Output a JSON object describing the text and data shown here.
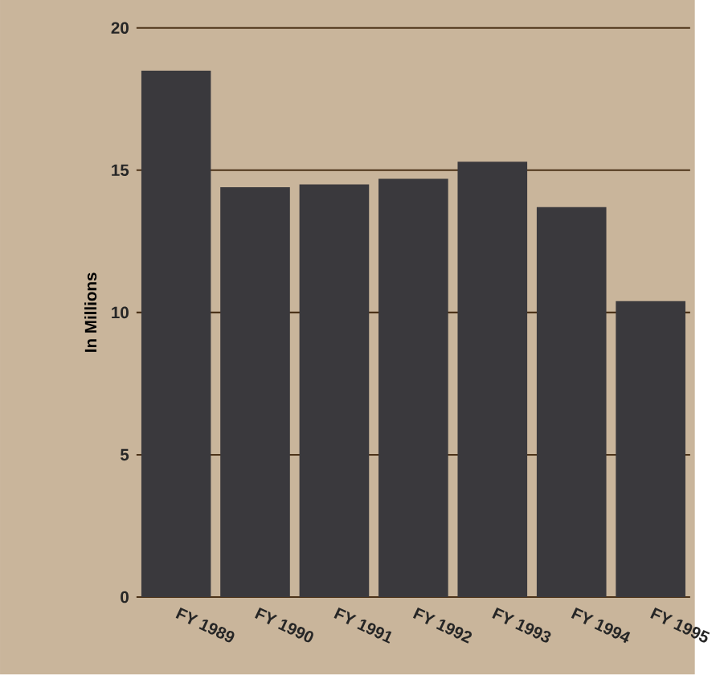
{
  "chart_data": {
    "type": "bar",
    "ylabel": "In Millions",
    "categories": [
      "FY 1989",
      "FY 1990",
      "FY 1991",
      "FY 1992",
      "FY 1993",
      "FY 1994",
      "FY 1995"
    ],
    "values": [
      18.5,
      14.4,
      14.5,
      14.7,
      15.3,
      13.7,
      10.4
    ],
    "color": "#3a393d",
    "ylim": [
      0,
      20
    ],
    "yticks": [
      0,
      5,
      10,
      15,
      20
    ],
    "grid": "y"
  }
}
